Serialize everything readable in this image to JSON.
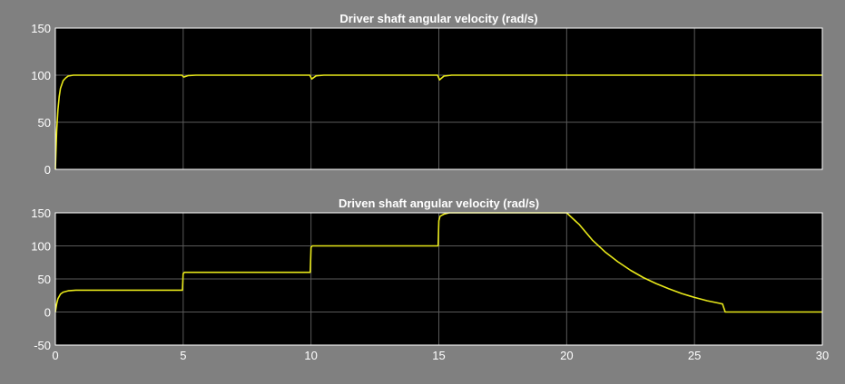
{
  "chart_data": [
    {
      "type": "line",
      "title": "Driver shaft angular velocity (rad/s)",
      "xlabel": "",
      "ylabel": "",
      "xlim": [
        0,
        30
      ],
      "ylim": [
        0,
        150
      ],
      "xticks": [
        0,
        5,
        10,
        15,
        20,
        25,
        30
      ],
      "yticks": [
        0,
        50,
        100,
        150
      ],
      "grid": true,
      "series": [
        {
          "color": "#e8e81a",
          "x": [
            0,
            0.05,
            0.1,
            0.15,
            0.2,
            0.3,
            0.4,
            0.5,
            0.7,
            1.0,
            4.95,
            5.02,
            5.2,
            5.5,
            9.95,
            10.03,
            10.2,
            10.5,
            14.95,
            15.03,
            15.2,
            15.5,
            30
          ],
          "y": [
            0,
            40,
            63,
            77,
            86,
            94,
            97,
            99,
            100,
            100,
            100,
            98,
            99.6,
            100,
            100,
            96,
            99.3,
            100,
            100,
            95,
            99,
            100,
            100
          ]
        }
      ]
    },
    {
      "type": "line",
      "title": "Driven shaft angular velocity (rad/s)",
      "xlabel": "",
      "ylabel": "",
      "xlim": [
        0,
        30
      ],
      "ylim": [
        -50,
        150
      ],
      "xticks": [
        0,
        5,
        10,
        15,
        20,
        25,
        30
      ],
      "yticks": [
        -50,
        0,
        50,
        100,
        150
      ],
      "grid": true,
      "series": [
        {
          "color": "#e8e81a",
          "x": [
            0,
            0.05,
            0.1,
            0.2,
            0.3,
            0.5,
            0.8,
            1.0,
            4.97,
            5.0,
            5.05,
            9.97,
            10.0,
            10.05,
            14.97,
            15.0,
            15.05,
            15.2,
            15.4,
            20.0,
            20.5,
            21.0,
            21.5,
            22.0,
            22.5,
            23.0,
            23.5,
            24.0,
            24.5,
            25.0,
            25.5,
            26.0,
            26.1,
            26.2,
            30
          ],
          "y": [
            0,
            12,
            20,
            27,
            30,
            32,
            33,
            33,
            33,
            58,
            60,
            60,
            98,
            100,
            100,
            138,
            145,
            148,
            150,
            150,
            132,
            109,
            91,
            76,
            63,
            52,
            43,
            35,
            28,
            22,
            17,
            13,
            12,
            0,
            0
          ]
        }
      ]
    }
  ]
}
